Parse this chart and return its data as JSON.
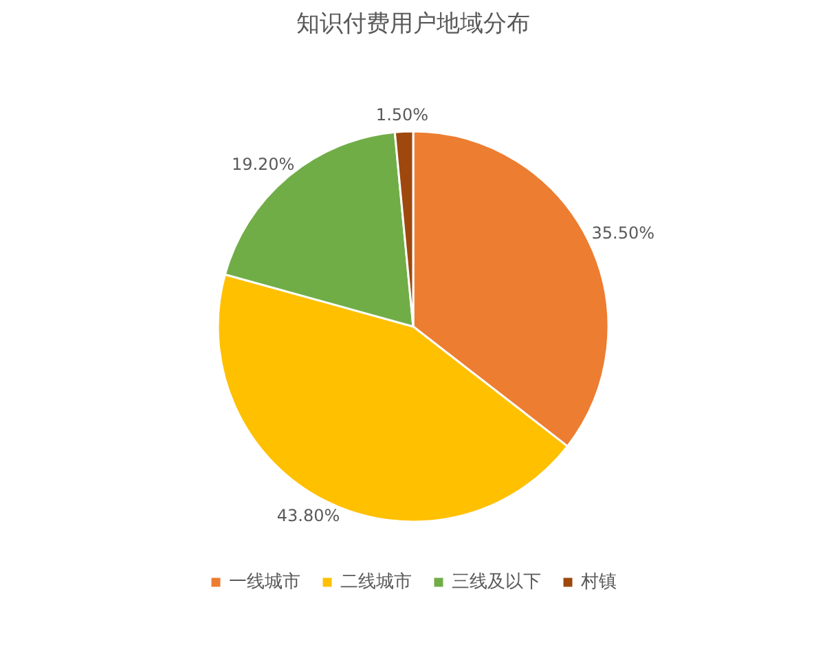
{
  "chart_data": {
    "type": "pie",
    "title": "知识付费用户地域分布",
    "categories": [
      "一线城市",
      "二线城市",
      "三线及以下",
      "村镇"
    ],
    "values": [
      35.5,
      43.8,
      19.2,
      1.5
    ],
    "colors": [
      "#ed7d31",
      "#ffc000",
      "#70ad47",
      "#9e480e"
    ],
    "value_labels": [
      "35.50%",
      "43.80%",
      "19.20%",
      "1.50%"
    ],
    "legend": "bottom"
  }
}
